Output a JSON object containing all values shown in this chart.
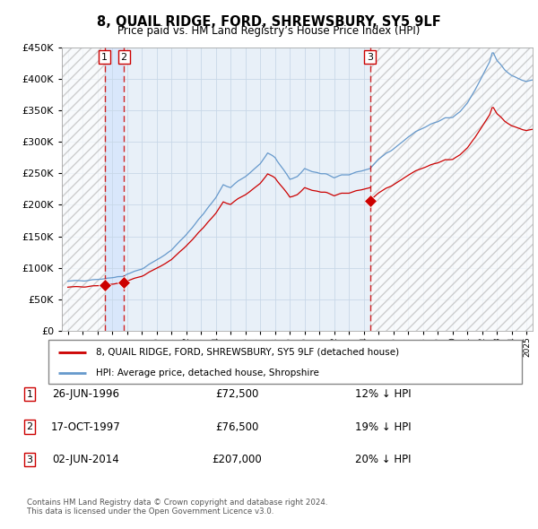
{
  "title": "8, QUAIL RIDGE, FORD, SHREWSBURY, SY5 9LF",
  "subtitle": "Price paid vs. HM Land Registry’s House Price Index (HPI)",
  "legend_line1": "8, QUAIL RIDGE, FORD, SHREWSBURY, SY5 9LF (detached house)",
  "legend_line2": "HPI: Average price, detached house, Shropshire",
  "transactions": [
    {
      "num": 1,
      "date": "26-JUN-1996",
      "price": 72500,
      "year": 1996.49,
      "pct": "12%",
      "dir": "↓"
    },
    {
      "num": 2,
      "date": "17-OCT-1997",
      "price": 76500,
      "year": 1997.79,
      "pct": "19%",
      "dir": "↓"
    },
    {
      "num": 3,
      "date": "02-JUN-2014",
      "price": 207000,
      "year": 2014.42,
      "pct": "20%",
      "dir": "↓"
    }
  ],
  "footnote1": "Contains HM Land Registry data © Crown copyright and database right 2024.",
  "footnote2": "This data is licensed under the Open Government Licence v3.0.",
  "hpi_color": "#6699cc",
  "price_color": "#cc0000",
  "marker_color": "#cc0000",
  "vline_color": "#cc0000",
  "grid_color": "#c8d8e8",
  "bg_plot": "#e8f0f8",
  "ylim": [
    0,
    450000
  ],
  "yticks": [
    0,
    50000,
    100000,
    150000,
    200000,
    250000,
    300000,
    350000,
    400000,
    450000
  ],
  "xlim_start": 1993.6,
  "xlim_end": 2025.4,
  "t1_year": 1996.49,
  "t2_year": 1997.79,
  "t3_year": 2014.42,
  "t1_price": 72500,
  "t2_price": 76500,
  "t3_price": 207000
}
